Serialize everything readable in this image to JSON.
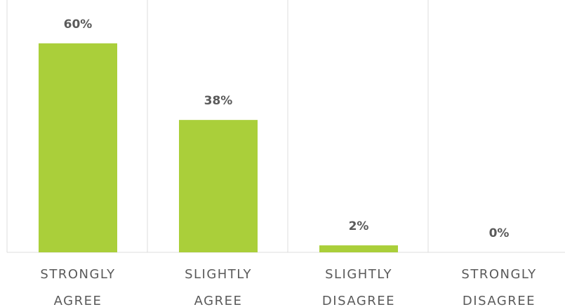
{
  "chart_data": {
    "type": "bar",
    "categories": [
      "STRONGLY AGREE",
      "SLIGHTLY AGREE",
      "SLIGHTLY DISAGREE",
      "STRONGLY DISAGREE"
    ],
    "values": [
      60,
      38,
      2,
      0
    ],
    "value_labels": [
      "60%",
      "38%",
      "2%",
      "0%"
    ],
    "color": "#aacf3a"
  }
}
